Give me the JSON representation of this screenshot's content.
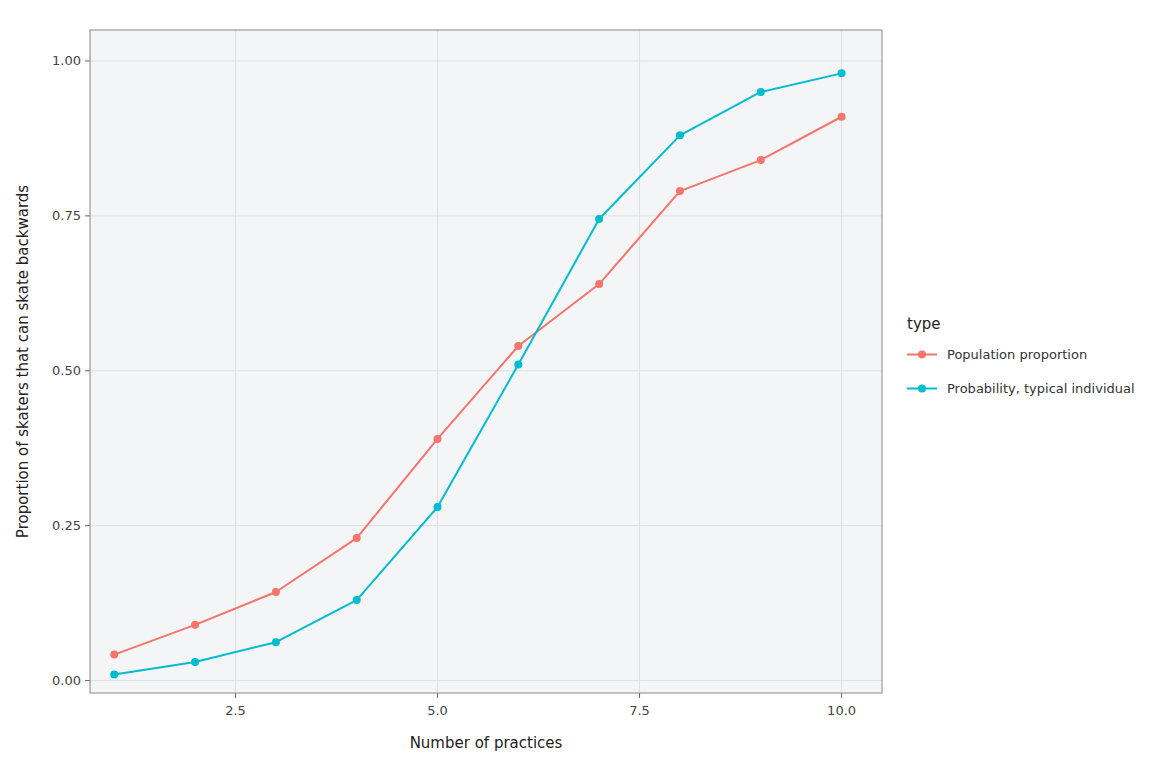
{
  "chart_data": {
    "type": "line",
    "xlabel": "Number of practices",
    "ylabel": "Proportion of skaters that can skate backwards",
    "legend_title": "type",
    "x": [
      1,
      2,
      3,
      4,
      5,
      6,
      7,
      8,
      9,
      10
    ],
    "series": [
      {
        "name": "Population proportion",
        "color": "#F4756B",
        "marker": "circle",
        "line_style": "solid",
        "values": [
          0.042,
          0.09,
          0.143,
          0.23,
          0.39,
          0.54,
          0.64,
          0.79,
          0.84,
          0.91
        ]
      },
      {
        "name": "Probability, typical individual",
        "color": "#00BCD0",
        "marker": "circle",
        "line_style": "solid",
        "values": [
          0.01,
          0.03,
          0.062,
          0.13,
          0.28,
          0.51,
          0.745,
          0.88,
          0.95,
          0.98
        ]
      }
    ],
    "xlim": [
      0.7,
      10.5
    ],
    "xticks": [
      2.5,
      {
        "value": 5.0,
        "label": "5.0"
      },
      {
        "value": 7.5,
        "label": "7.5"
      },
      {
        "value": 10.0,
        "label": "10.0"
      }
    ],
    "ylim": [
      -0.02,
      1.05
    ],
    "yticks": [
      {
        "value": 0.0,
        "label": "0.00"
      },
      {
        "value": 0.25,
        "label": "0.25"
      },
      {
        "value": 0.5,
        "label": "0.50"
      },
      {
        "value": 0.75,
        "label": "0.75"
      },
      {
        "value": 1.0,
        "label": "1.00"
      }
    ],
    "grid": true,
    "legend": "right"
  }
}
